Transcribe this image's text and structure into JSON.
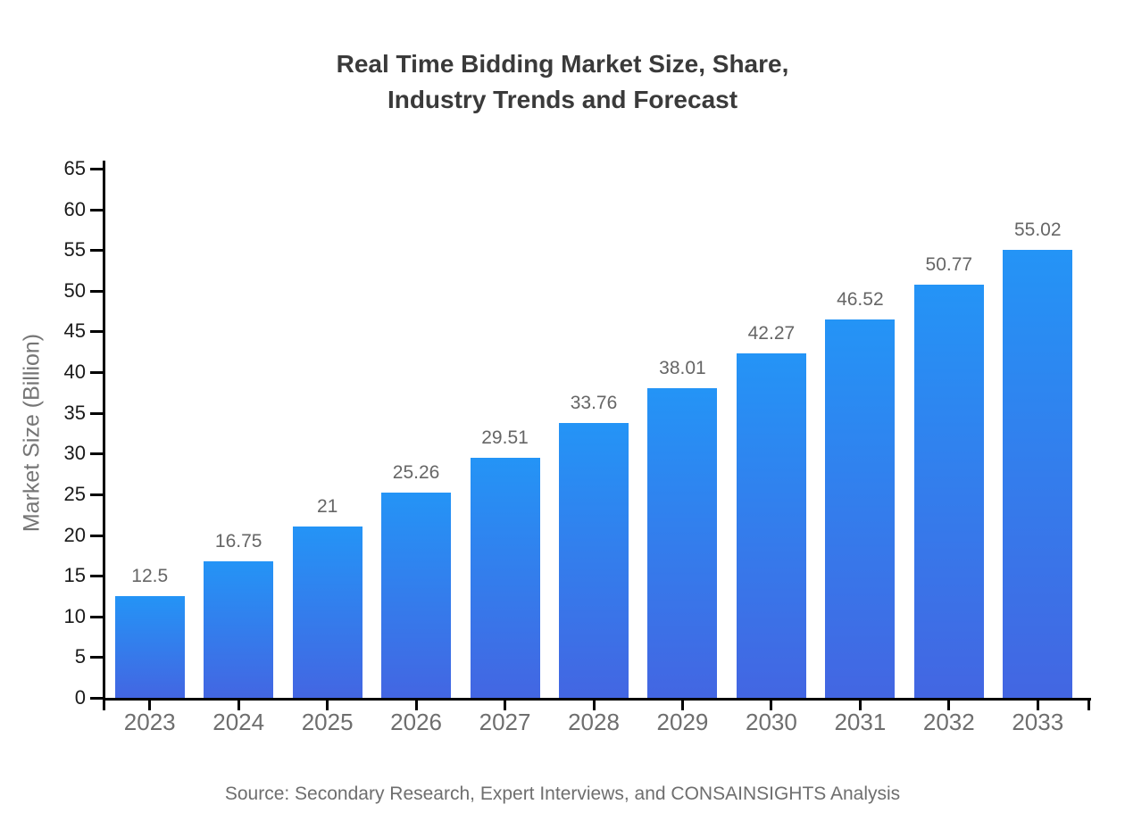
{
  "chart_data": {
    "type": "bar",
    "title_lines": [
      "Real Time Bidding Market Size, Share,",
      "Industry Trends and Forecast"
    ],
    "categories": [
      "2023",
      "2024",
      "2025",
      "2026",
      "2027",
      "2028",
      "2029",
      "2030",
      "2031",
      "2032",
      "2033"
    ],
    "values": [
      12.5,
      16.75,
      21,
      25.26,
      29.51,
      33.76,
      38.01,
      42.27,
      46.52,
      50.77,
      55.02
    ],
    "value_labels": [
      "12.5",
      "16.75",
      "21",
      "25.26",
      "29.51",
      "33.76",
      "38.01",
      "42.27",
      "46.52",
      "50.77",
      "55.02"
    ],
    "xlabel": "",
    "ylabel": "Market Size (Billion)",
    "ylim": [
      0,
      65
    ],
    "yticks": [
      0,
      5,
      10,
      15,
      20,
      25,
      30,
      35,
      40,
      45,
      50,
      55,
      60,
      65
    ],
    "grid": false,
    "legend_position": "none",
    "source": "Source: Secondary Research, Expert Interviews, and CONSAINSIGHTS Analysis",
    "colors": {
      "bar_gradient_top": "#2494f6",
      "bar_gradient_bottom": "#4366e2",
      "axis": "#000000",
      "title": "#3a3a3a",
      "ytick_label": "#1a1a1a",
      "category_label": "#6e6e6e",
      "value_label": "#666666",
      "ylabel": "#757575",
      "source": "#6e6e6e"
    }
  }
}
